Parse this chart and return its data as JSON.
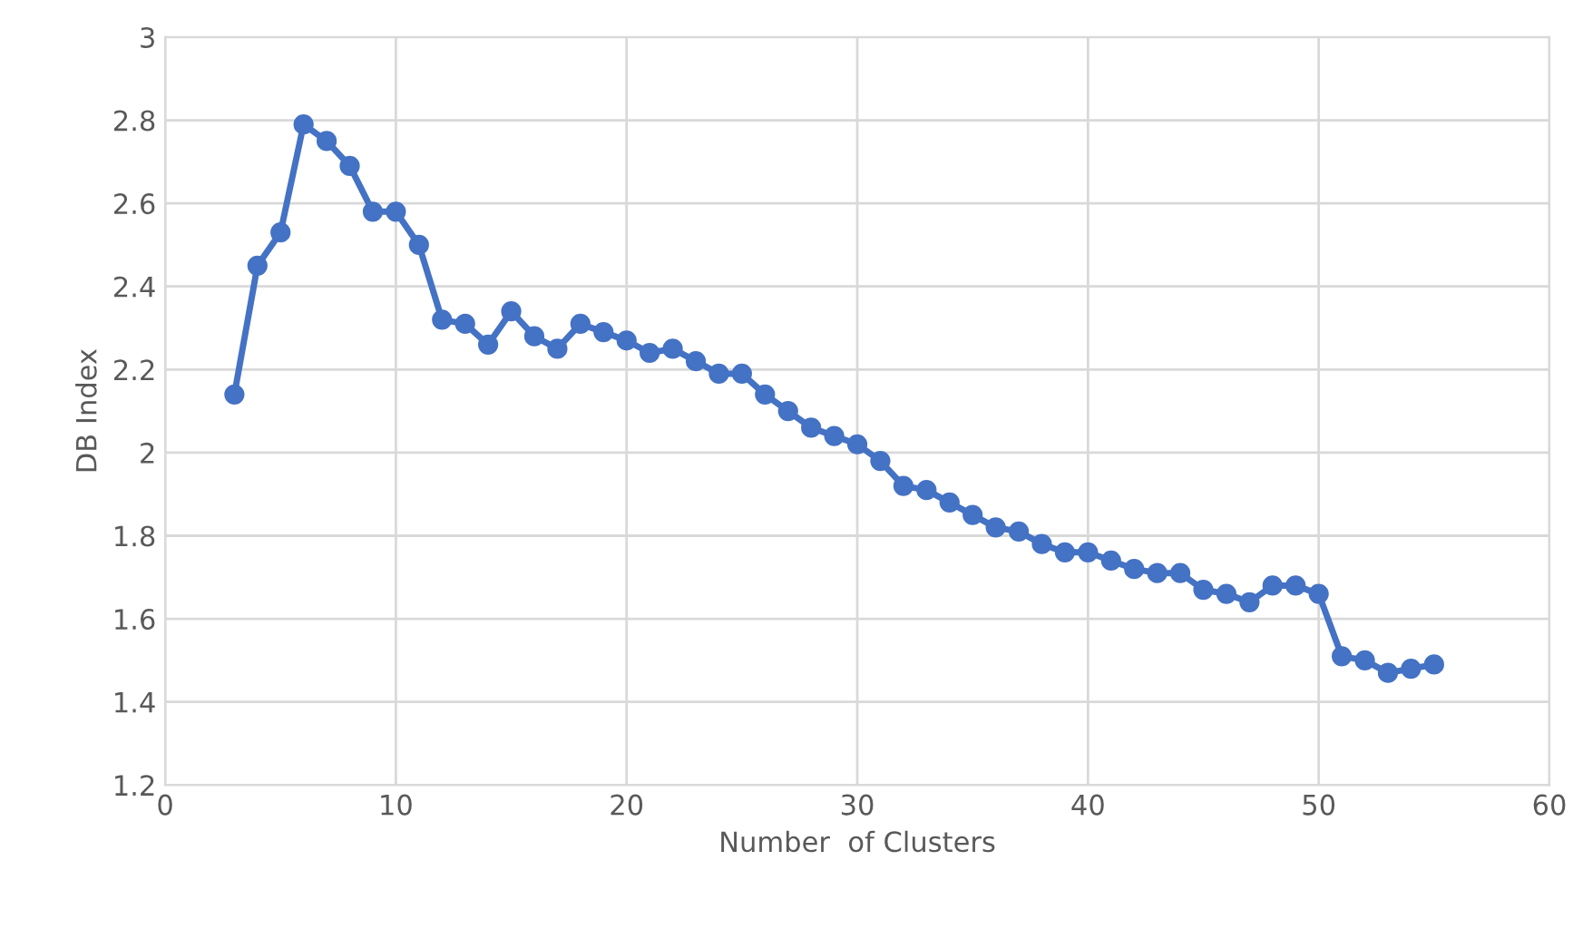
{
  "chart_data": {
    "type": "line",
    "xlabel": "Number  of Clusters",
    "ylabel": "DB Index",
    "x": [
      3,
      4,
      5,
      6,
      7,
      8,
      9,
      10,
      11,
      12,
      13,
      14,
      15,
      16,
      17,
      18,
      19,
      20,
      21,
      22,
      23,
      24,
      25,
      26,
      27,
      28,
      29,
      30,
      31,
      32,
      33,
      34,
      35,
      36,
      37,
      38,
      39,
      40,
      41,
      42,
      43,
      44,
      45,
      46,
      47,
      48,
      49,
      50,
      51,
      52,
      53,
      54,
      55
    ],
    "series": [
      {
        "color": "#4472c4",
        "values": [
          2.14,
          2.45,
          2.53,
          2.79,
          2.75,
          2.69,
          2.58,
          2.58,
          2.5,
          2.32,
          2.31,
          2.26,
          2.34,
          2.28,
          2.25,
          2.31,
          2.29,
          2.27,
          2.24,
          2.25,
          2.22,
          2.19,
          2.19,
          2.14,
          2.1,
          2.06,
          2.04,
          2.02,
          1.98,
          1.92,
          1.91,
          1.88,
          1.85,
          1.82,
          1.81,
          1.78,
          1.76,
          1.76,
          1.74,
          1.72,
          1.71,
          1.71,
          1.67,
          1.66,
          1.64,
          1.68,
          1.68,
          1.66,
          1.51,
          1.5,
          1.47,
          1.48,
          1.49
        ]
      }
    ],
    "xlim": [
      0,
      60
    ],
    "xticks": [
      0,
      10,
      20,
      30,
      40,
      50,
      60
    ],
    "ylim": [
      1.2,
      3
    ],
    "yticks": [
      1.2,
      1.4,
      1.6,
      1.8,
      2,
      2.2,
      2.4,
      2.6,
      2.8,
      3
    ],
    "grid": true,
    "marker": "circle",
    "line_style": "solid"
  }
}
